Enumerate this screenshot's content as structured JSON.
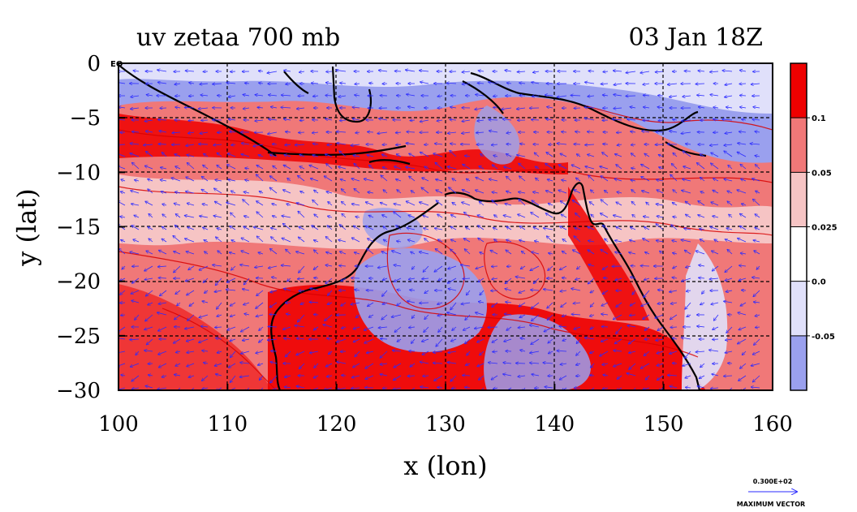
{
  "header": {
    "title_left": "uv zetaa 700 mb",
    "title_right": "03 Jan 18Z"
  },
  "chart_data": {
    "type": "heatmap",
    "title": "uv zetaa 700 mb",
    "time_label": "03 Jan 18Z",
    "xlabel": "x (lon)",
    "ylabel": "y (lat)",
    "xlim": [
      100,
      160
    ],
    "ylim": [
      -30,
      0
    ],
    "x_ticks": [
      100,
      110,
      120,
      130,
      140,
      150,
      160
    ],
    "y_ticks": [
      0,
      -5,
      -10,
      -15,
      -20,
      -25,
      -30
    ],
    "y_tick_labels": [
      "0",
      "−5",
      "−10",
      "−15",
      "−20",
      "−25",
      "−30"
    ],
    "gridlines": true,
    "overlay": "wind vectors (u, v)",
    "coastline": true,
    "eq_label": "EQ",
    "colorbar": {
      "labels": [
        "0.1",
        "0.05",
        "0.025",
        "0.0",
        "-0.05"
      ],
      "levels": [
        -0.05,
        0.0,
        0.025,
        0.05,
        0.1
      ],
      "colors": [
        "#ee0000",
        "#f07878",
        "#f6c4c4",
        "#ffffff",
        "#e0e0fa",
        "#9aa0ee"
      ]
    },
    "vector_key": {
      "value": "0.300E+02",
      "label": "MAXIMUM VECTOR"
    },
    "colors": {
      "strong_positive": "#ee0000",
      "positive": "#f07878",
      "weak_positive": "#f6c4c4",
      "negative": "#9aa0ee",
      "weak_negative": "#e0e0fa",
      "vector": "#2a2aff",
      "contour": "#d80000",
      "coast": "#000000"
    }
  }
}
